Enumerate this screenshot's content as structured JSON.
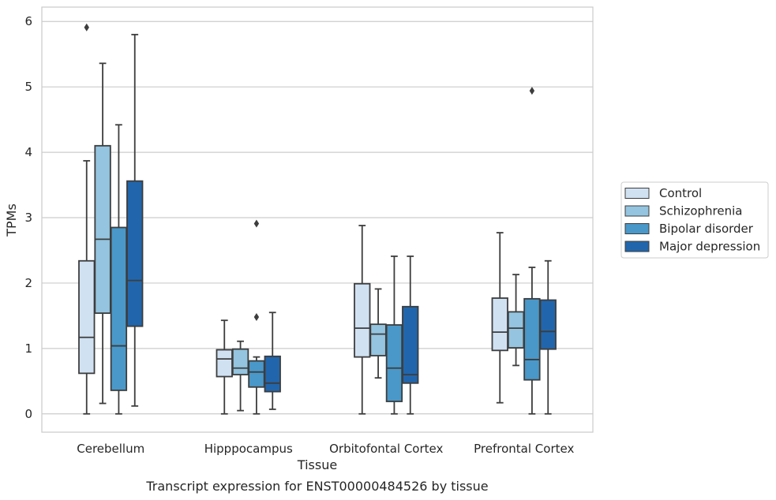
{
  "chart_data": {
    "type": "box",
    "title": "",
    "caption": "Transcript expression for ENST00000484526 by tissue",
    "xlabel": "Tissue",
    "ylabel": "TPMs",
    "ylim": [
      -0.28,
      6.22
    ],
    "yticks": [
      0,
      1,
      2,
      3,
      4,
      5,
      6
    ],
    "grid": "horizontal",
    "legend_position": "right",
    "categories": [
      "Cerebellum",
      "Hipppocampus",
      "Orbitofontal Cortex",
      "Prefrontal Cortex"
    ],
    "series": [
      {
        "name": "Control",
        "color": "#d0e1f2",
        "boxes": [
          {
            "min": 0.0,
            "q1": 0.62,
            "median": 1.17,
            "q3": 2.34,
            "max": 3.87,
            "outliers": [
              5.91
            ]
          },
          {
            "min": 0.0,
            "q1": 0.57,
            "median": 0.84,
            "q3": 0.98,
            "max": 1.43,
            "outliers": []
          },
          {
            "min": 0.0,
            "q1": 0.87,
            "median": 1.31,
            "q3": 1.99,
            "max": 2.88,
            "outliers": []
          },
          {
            "min": 0.17,
            "q1": 0.97,
            "median": 1.25,
            "q3": 1.77,
            "max": 2.77,
            "outliers": []
          }
        ]
      },
      {
        "name": "Schizophrenia",
        "color": "#94c4df",
        "boxes": [
          {
            "min": 0.16,
            "q1": 1.54,
            "median": 2.67,
            "q3": 4.1,
            "max": 5.36,
            "outliers": []
          },
          {
            "min": 0.05,
            "q1": 0.6,
            "median": 0.7,
            "q3": 0.99,
            "max": 1.11,
            "outliers": []
          },
          {
            "min": 0.55,
            "q1": 0.89,
            "median": 1.22,
            "q3": 1.37,
            "max": 1.91,
            "outliers": []
          },
          {
            "min": 0.74,
            "q1": 1.01,
            "median": 1.31,
            "q3": 1.56,
            "max": 2.13,
            "outliers": []
          }
        ]
      },
      {
        "name": "Bipolar disorder",
        "color": "#4a98c9",
        "boxes": [
          {
            "min": 0.0,
            "q1": 0.36,
            "median": 1.04,
            "q3": 2.85,
            "max": 4.42,
            "outliers": []
          },
          {
            "min": 0.0,
            "q1": 0.41,
            "median": 0.64,
            "q3": 0.81,
            "max": 0.87,
            "outliers": [
              1.48,
              2.91
            ]
          },
          {
            "min": 0.0,
            "q1": 0.19,
            "median": 0.7,
            "q3": 1.36,
            "max": 2.41,
            "outliers": []
          },
          {
            "min": 0.0,
            "q1": 0.52,
            "median": 0.83,
            "q3": 1.76,
            "max": 2.24,
            "outliers": [
              4.94
            ]
          }
        ]
      },
      {
        "name": "Major depression",
        "color": "#2166ac",
        "boxes": [
          {
            "min": 0.12,
            "q1": 1.34,
            "median": 2.04,
            "q3": 3.56,
            "max": 5.8,
            "outliers": []
          },
          {
            "min": 0.07,
            "q1": 0.34,
            "median": 0.47,
            "q3": 0.88,
            "max": 1.55,
            "outliers": []
          },
          {
            "min": 0.0,
            "q1": 0.47,
            "median": 0.6,
            "q3": 1.64,
            "max": 2.41,
            "outliers": []
          },
          {
            "min": 0.0,
            "q1": 0.99,
            "median": 1.26,
            "q3": 1.74,
            "max": 2.34,
            "outliers": []
          }
        ]
      }
    ]
  }
}
